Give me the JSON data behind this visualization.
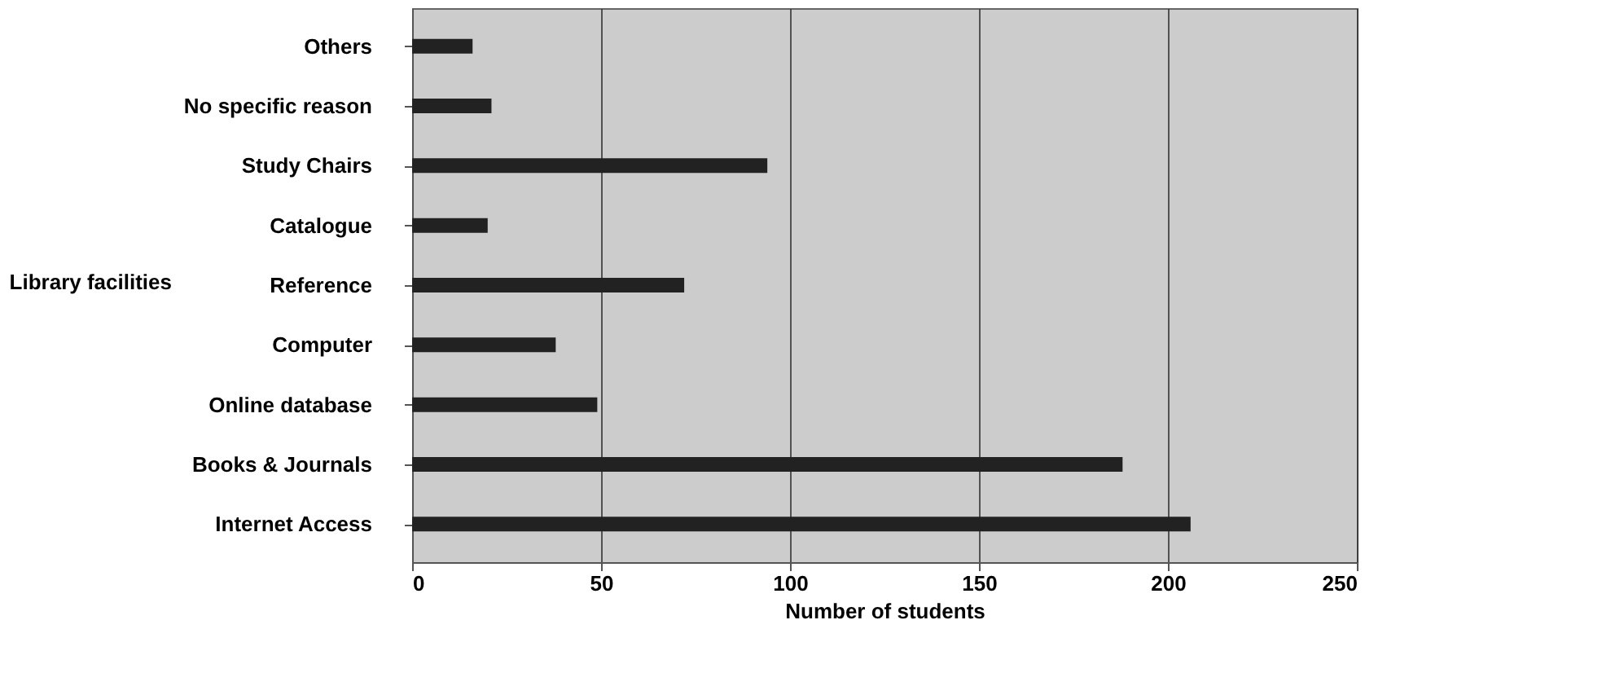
{
  "chart_data": {
    "type": "bar",
    "orientation": "horizontal",
    "xlabel": "Number of students",
    "ylabel": "Library facilities",
    "categories": [
      "Others",
      "No specific reason",
      "Study Chairs",
      "Catalogue",
      "Reference",
      "Computer",
      "Online database",
      "Books & Journals",
      "Internet Access"
    ],
    "values": [
      16,
      21,
      94,
      20,
      72,
      38,
      49,
      188,
      206
    ],
    "color": "#222222",
    "xlim": [
      0,
      250
    ],
    "xticks": [
      0,
      50,
      100,
      150,
      200,
      250
    ],
    "grid": "x"
  }
}
